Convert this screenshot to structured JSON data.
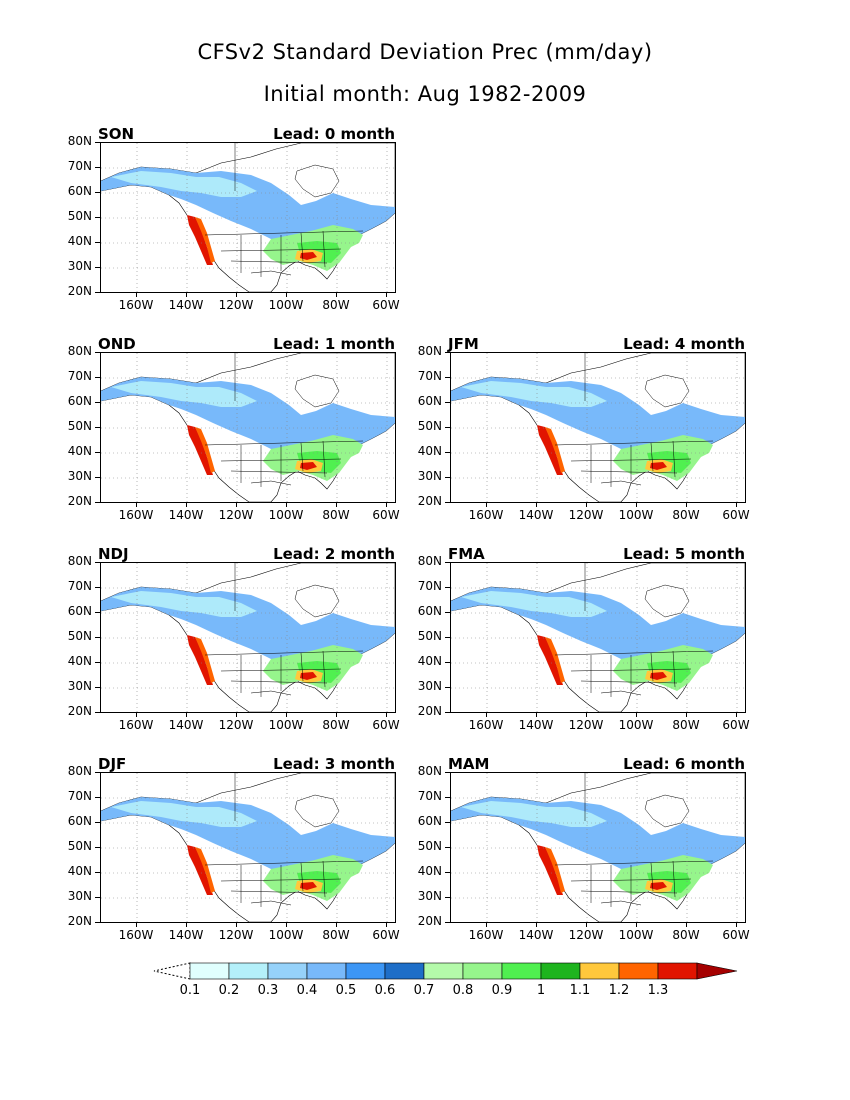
{
  "title_line1": "CFSv2 Standard Deviation Prec (mm/day)",
  "title_line2": "Initial month: Aug 1982-2009",
  "lat_labels": [
    "80N",
    "70N",
    "60N",
    "50N",
    "40N",
    "30N",
    "20N"
  ],
  "lon_labels": [
    "160W",
    "140W",
    "120W",
    "100W",
    "80W",
    "60W"
  ],
  "panels": [
    {
      "season": "SON",
      "lead": "Lead: 0 month"
    },
    {
      "season": "OND",
      "lead": "Lead: 1 month"
    },
    {
      "season": "JFM",
      "lead": "Lead: 4 month"
    },
    {
      "season": "NDJ",
      "lead": "Lead: 2 month"
    },
    {
      "season": "FMA",
      "lead": "Lead: 5 month"
    },
    {
      "season": "DJF",
      "lead": "Lead: 3 month"
    },
    {
      "season": "MAM",
      "lead": "Lead: 6 month"
    }
  ],
  "colorbar": {
    "levels": [
      "0.1",
      "0.2",
      "0.3",
      "0.4",
      "0.5",
      "0.6",
      "0.7",
      "0.8",
      "0.9",
      "1",
      "1.1",
      "1.2",
      "1.3"
    ],
    "colors": [
      "#e0fffe",
      "#b4f0fa",
      "#96d2fa",
      "#78b9fa",
      "#3c96f5",
      "#1e6ec8",
      "#b4faaa",
      "#96f58c",
      "#50f050",
      "#1eb41e",
      "#ffc83c",
      "#ff6400",
      "#e11400",
      "#a50000"
    ]
  }
}
